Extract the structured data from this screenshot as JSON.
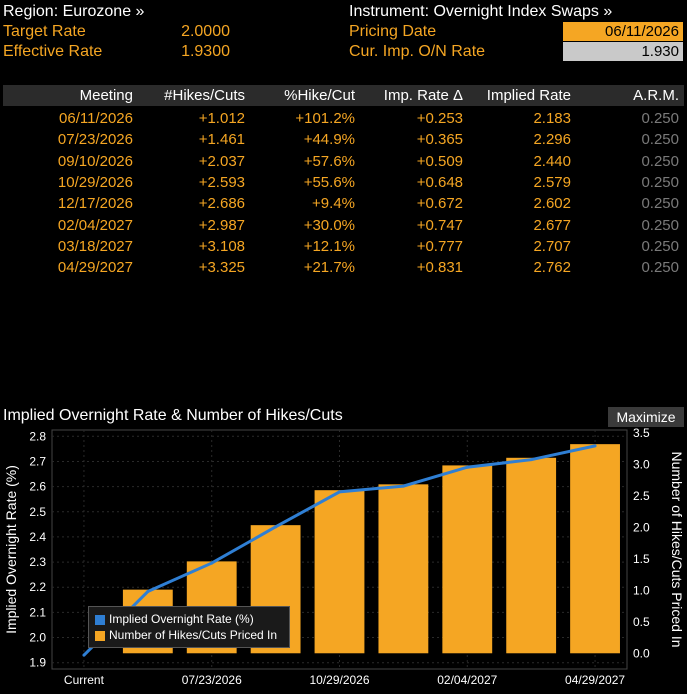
{
  "header": {
    "region_label": "Region: Eurozone »",
    "target_rate_label": "Target Rate",
    "target_rate_value": "2.0000",
    "effective_rate_label": "Effective Rate",
    "effective_rate_value": "1.9300",
    "instrument_label": "Instrument: Overnight Index Swaps »",
    "pricing_date_label": "Pricing Date",
    "pricing_date_value": "06/11/2026",
    "cur_imp_label": "Cur. Imp. O/N Rate",
    "cur_imp_value": "1.930"
  },
  "table": {
    "columns": [
      "Meeting",
      "#Hikes/Cuts",
      "%Hike/Cut",
      "Imp. Rate Δ",
      "Implied Rate",
      "A.R.M."
    ],
    "rows": [
      [
        "06/11/2026",
        "+1.012",
        "+101.2%",
        "+0.253",
        "2.183",
        "0.250"
      ],
      [
        "07/23/2026",
        "+1.461",
        "+44.9%",
        "+0.365",
        "2.296",
        "0.250"
      ],
      [
        "09/10/2026",
        "+2.037",
        "+57.6%",
        "+0.509",
        "2.440",
        "0.250"
      ],
      [
        "10/29/2026",
        "+2.593",
        "+55.6%",
        "+0.648",
        "2.579",
        "0.250"
      ],
      [
        "12/17/2026",
        "+2.686",
        "+9.4%",
        "+0.672",
        "2.602",
        "0.250"
      ],
      [
        "02/04/2027",
        "+2.987",
        "+30.0%",
        "+0.747",
        "2.677",
        "0.250"
      ],
      [
        "03/18/2027",
        "+3.108",
        "+12.1%",
        "+0.777",
        "2.707",
        "0.250"
      ],
      [
        "04/29/2027",
        "+3.325",
        "+21.7%",
        "+0.831",
        "2.762",
        "0.250"
      ]
    ]
  },
  "chart_panel": {
    "title": "Implied Overnight Rate & Number of Hikes/Cuts",
    "maximize_label": "Maximize"
  },
  "colors": {
    "accent_orange": "#f5a623",
    "line_blue": "#2f7fd4",
    "arm_grey": "#7a7a7a"
  },
  "chart_data": {
    "type": "bar",
    "categories": [
      "Current",
      "06/11/2026",
      "07/23/2026",
      "09/10/2026",
      "10/29/2026",
      "12/17/2026",
      "02/04/2027",
      "03/18/2027",
      "04/29/2027"
    ],
    "x_tick_labels": [
      "Current",
      "07/23/2026",
      "10/29/2026",
      "02/04/2027",
      "04/29/2027"
    ],
    "series": [
      {
        "name": "Implied Overnight Rate (%)",
        "type": "line",
        "axis": "left",
        "values": [
          1.93,
          2.183,
          2.296,
          2.44,
          2.579,
          2.602,
          2.677,
          2.707,
          2.762
        ]
      },
      {
        "name": "Number of Hikes/Cuts Priced In",
        "type": "bar",
        "axis": "right",
        "values": [
          0,
          1.012,
          1.461,
          2.037,
          2.593,
          2.686,
          2.987,
          3.108,
          3.325
        ]
      }
    ],
    "ylabel": "Implied Overnight Rate (%)",
    "y2label": "Number of Hikes/Cuts Priced In",
    "ylim": [
      1.875,
      2.825
    ],
    "y_ticks": [
      1.9,
      2.0,
      2.1,
      2.2,
      2.3,
      2.4,
      2.5,
      2.6,
      2.7,
      2.8
    ],
    "y2lim": [
      -0.25,
      3.55
    ],
    "y2_ticks": [
      0.0,
      0.5,
      1.0,
      1.5,
      2.0,
      2.5,
      3.0,
      3.5
    ],
    "grid": true,
    "legend_position": "bottom-left"
  }
}
